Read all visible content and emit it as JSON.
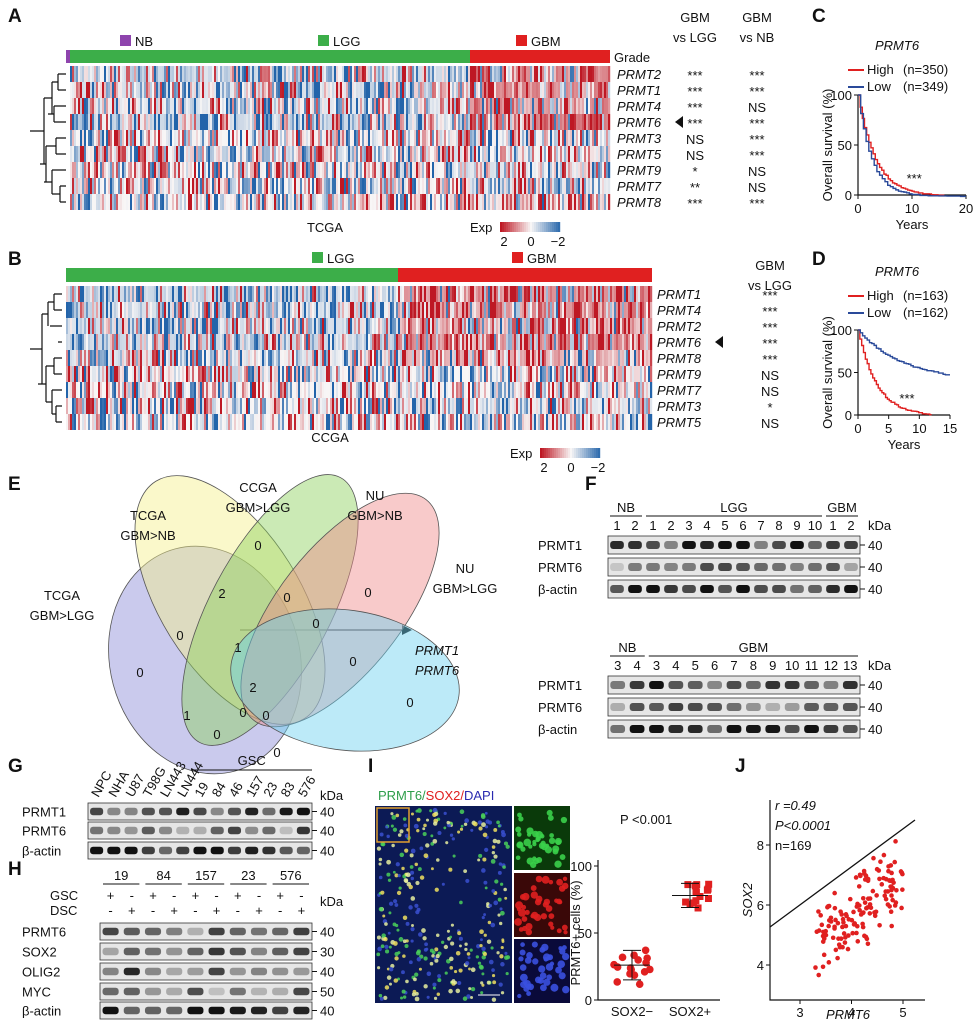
{
  "panels": {
    "A": {
      "letter": "A",
      "grades": [
        "NB",
        "LGG",
        "GBM"
      ],
      "grade_label": "Grade",
      "genes": [
        "PRMT2",
        "PRMT1",
        "PRMT4",
        "PRMT6",
        "PRMT3",
        "PRMT5",
        "PRMT9",
        "PRMT7",
        "PRMT8"
      ],
      "highlight_index": 3,
      "col_headers": [
        [
          "GBM",
          "vs LGG"
        ],
        [
          "GBM",
          "vs NB"
        ]
      ],
      "significance": [
        [
          "***",
          "***",
          "***",
          "***",
          "NS",
          "NS",
          "*",
          "**",
          "***"
        ],
        [
          "***",
          "***",
          "NS",
          "***",
          "***",
          "***",
          "NS",
          "NS",
          "***"
        ]
      ],
      "cohort": "TCGA",
      "scale_label": "Exp",
      "scale_ticks": [
        "2",
        "0",
        "−2"
      ]
    },
    "B": {
      "letter": "B",
      "grades": [
        "LGG",
        "GBM"
      ],
      "genes": [
        "PRMT1",
        "PRMT4",
        "PRMT2",
        "PRMT6",
        "PRMT8",
        "PRMT9",
        "PRMT7",
        "PRMT3",
        "PRMT5"
      ],
      "highlight_index": 3,
      "col_headers": [
        [
          "GBM",
          "vs LGG"
        ]
      ],
      "significance": [
        [
          "***",
          "***",
          "***",
          "***",
          "***",
          "NS",
          "NS",
          "*",
          "NS"
        ]
      ],
      "cohort": "CCGA",
      "scale_label": "Exp",
      "scale_ticks": [
        "2",
        "0",
        "−2"
      ]
    },
    "C": {
      "letter": "C",
      "title": "PRMT6",
      "legend": [
        {
          "name": "High",
          "n": "(n=350)",
          "color": "#e02020"
        },
        {
          "name": "Low",
          "n": "(n=349)",
          "color": "#2a4a9a"
        }
      ],
      "ylabel": "Overall survival (%)",
      "yticks": [
        0,
        50,
        100
      ],
      "xticks": [
        0,
        10,
        20
      ],
      "xlabel": "Years",
      "annotation": "***"
    },
    "D": {
      "letter": "D",
      "title": "PRMT6",
      "legend": [
        {
          "name": "High",
          "n": "(n=163)",
          "color": "#e02020"
        },
        {
          "name": "Low",
          "n": "(n=162)",
          "color": "#2a4a9a"
        }
      ],
      "ylabel": "Overall survival (%)",
      "yticks": [
        0,
        50,
        100
      ],
      "xticks": [
        0,
        5,
        10,
        15
      ],
      "xlabel": "Years",
      "annotation": "***"
    },
    "E": {
      "letter": "E",
      "sets": [
        {
          "lines": [
            "TCGA",
            "GBM>LGG"
          ],
          "color": "#3b3f9a"
        },
        {
          "lines": [
            "TCGA",
            "GBM>NB"
          ],
          "color": "#f08c1a"
        },
        {
          "lines": [
            "CCGA",
            "GBM>LGG"
          ],
          "color": "#6a9a2a"
        },
        {
          "lines": [
            "NU",
            "GBM>NB"
          ],
          "color": "#e0509a"
        },
        {
          "lines": [
            "NU",
            "GBM>LGG"
          ],
          "color": "#2a9ad0"
        }
      ],
      "counts": [
        2,
        0,
        0,
        0,
        0,
        0,
        1,
        0,
        0,
        0,
        1,
        0,
        0,
        0,
        0
      ],
      "center": 2,
      "genes": [
        "PRMT1",
        "PRMT6"
      ]
    },
    "F": {
      "letter": "F",
      "top": {
        "groups": [
          "NB",
          "LGG",
          "GBM"
        ],
        "lanes": [
          1,
          2,
          1,
          2,
          3,
          4,
          5,
          6,
          7,
          8,
          9,
          10,
          1,
          2
        ],
        "group_sizes": [
          2,
          10,
          2
        ]
      },
      "bottom": {
        "groups": [
          "NB",
          "GBM"
        ],
        "lanes": [
          3,
          4,
          3,
          4,
          5,
          6,
          7,
          8,
          9,
          10,
          11,
          12,
          13
        ],
        "group_sizes": [
          2,
          11
        ]
      },
      "rows": [
        "PRMT1",
        "PRMT6",
        "β-actin"
      ],
      "kda_label": "kDa",
      "kda": [
        40,
        40,
        40
      ]
    },
    "G": {
      "letter": "G",
      "lanes": [
        "NPC",
        "NHA",
        "U87",
        "T98G",
        "LN443",
        "LN444",
        "19",
        "84",
        "46",
        "157",
        "23",
        "83",
        "576"
      ],
      "group": "GSC",
      "rows": [
        "PRMT1",
        "PRMT6",
        "β-actin"
      ],
      "kda_label": "kDa",
      "kda": [
        40,
        40,
        40
      ]
    },
    "H": {
      "letter": "H",
      "lines": [
        "19",
        "84",
        "157",
        "23",
        "576"
      ],
      "conditions": [
        {
          "name": "GSC",
          "marks": [
            "+",
            "-",
            "+",
            "-",
            "+",
            "-",
            "+",
            "-",
            "+",
            "-"
          ]
        },
        {
          "name": "DSC",
          "marks": [
            "-",
            "+",
            "-",
            "+",
            "-",
            "+",
            "-",
            "+",
            "-",
            "+"
          ]
        }
      ],
      "rows": [
        "PRMT6",
        "SOX2",
        "OLIG2",
        "MYC",
        "β-actin"
      ],
      "kda_label": "kDa",
      "kda": [
        40,
        30,
        40,
        50,
        40
      ]
    },
    "I": {
      "letter": "I",
      "stain": [
        {
          "text": "PRMT6/",
          "color": "#2e9e4a"
        },
        {
          "text": "SOX2/",
          "color": "#e02020"
        },
        {
          "text": "DAPI",
          "color": "#2a2ab0"
        }
      ],
      "pvalue": "P <0.001",
      "ylabel": "PRMT6+ cells (%)",
      "yticks": [
        0,
        50,
        100
      ],
      "categories": [
        "SOX2−",
        "SOX2+"
      ]
    },
    "J": {
      "letter": "J",
      "stats": [
        "r =0.49",
        "P<0.0001",
        "n=169"
      ],
      "ylabel": "SOX2",
      "yticks": [
        4,
        6,
        8
      ],
      "xticks": [
        3,
        4,
        5
      ],
      "xlabel": "PRMT6"
    }
  }
}
